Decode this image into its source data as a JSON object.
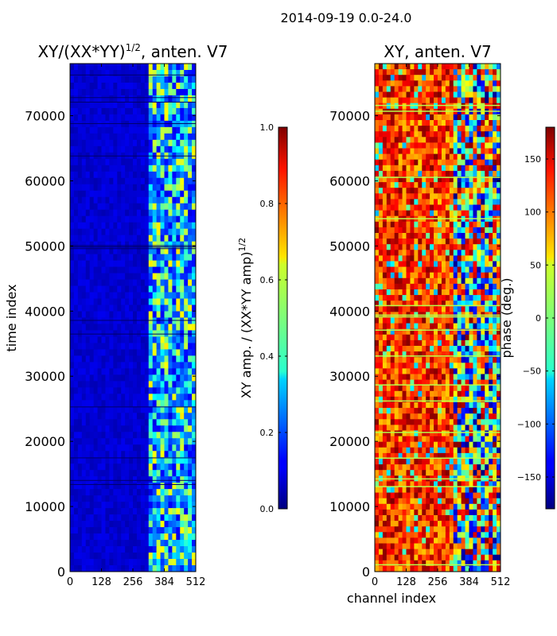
{
  "figure": {
    "suptitle": "2014-09-19 0.0-24.0",
    "time_index_label": "time index"
  },
  "chart_data": [
    {
      "type": "heatmap",
      "title": "XY/(XX*YY)^{1/2}, anten. V7",
      "title_parts": {
        "main": "XY/(XX*YY)",
        "sup": "1/2",
        "tail": ", anten. V7"
      },
      "xlabel": "",
      "ylabel": "time index",
      "xlim": [
        0,
        512
      ],
      "ylim": [
        0,
        78000
      ],
      "xticks": [
        0,
        128,
        256,
        384,
        512
      ],
      "yticks": [
        0,
        10000,
        20000,
        30000,
        40000,
        50000,
        60000,
        70000
      ],
      "colormap": "jet",
      "colorbar": {
        "label": "XY amp. / (XX*YY amp)^{1/2}",
        "label_parts": {
          "main": "XY amp. / (XX*YY amp)",
          "sup": "1/2"
        },
        "range": [
          0.0,
          1.0
        ],
        "ticks": [
          "0.0",
          "0.2",
          "0.4",
          "0.6",
          "0.8",
          "1.0"
        ]
      },
      "description_values": {
        "channel_range_low": [
          0,
          320
        ],
        "low_value": 0.05,
        "channel_range_high": [
          320,
          512
        ],
        "high_value_range": [
          0.1,
          0.65
        ]
      }
    },
    {
      "type": "heatmap",
      "title": "XY, anten. V7",
      "xlabel": "channel index",
      "ylabel": "",
      "xlim": [
        0,
        512
      ],
      "ylim": [
        0,
        78000
      ],
      "xticks": [
        0,
        128,
        256,
        384,
        512
      ],
      "yticks": [
        0,
        10000,
        20000,
        30000,
        40000,
        50000,
        60000,
        70000
      ],
      "colormap": "jet",
      "colorbar": {
        "label": "phase (deg.)",
        "range": [
          -180,
          180
        ],
        "ticks": [
          "−150",
          "−100",
          "−50",
          "0",
          "50",
          "100",
          "150"
        ],
        "tick_values": [
          -150,
          -100,
          -50,
          0,
          50,
          100,
          150
        ]
      },
      "description_values": {
        "dominant_phase": 120,
        "phase_spread": [
          60,
          180
        ],
        "noisy_channel_range": [
          320,
          512
        ]
      }
    }
  ],
  "colors": {
    "background": "#ffffff",
    "axis": "#000000",
    "jet_dark_blue": "#00007f",
    "jet_red": "#7f0000"
  }
}
